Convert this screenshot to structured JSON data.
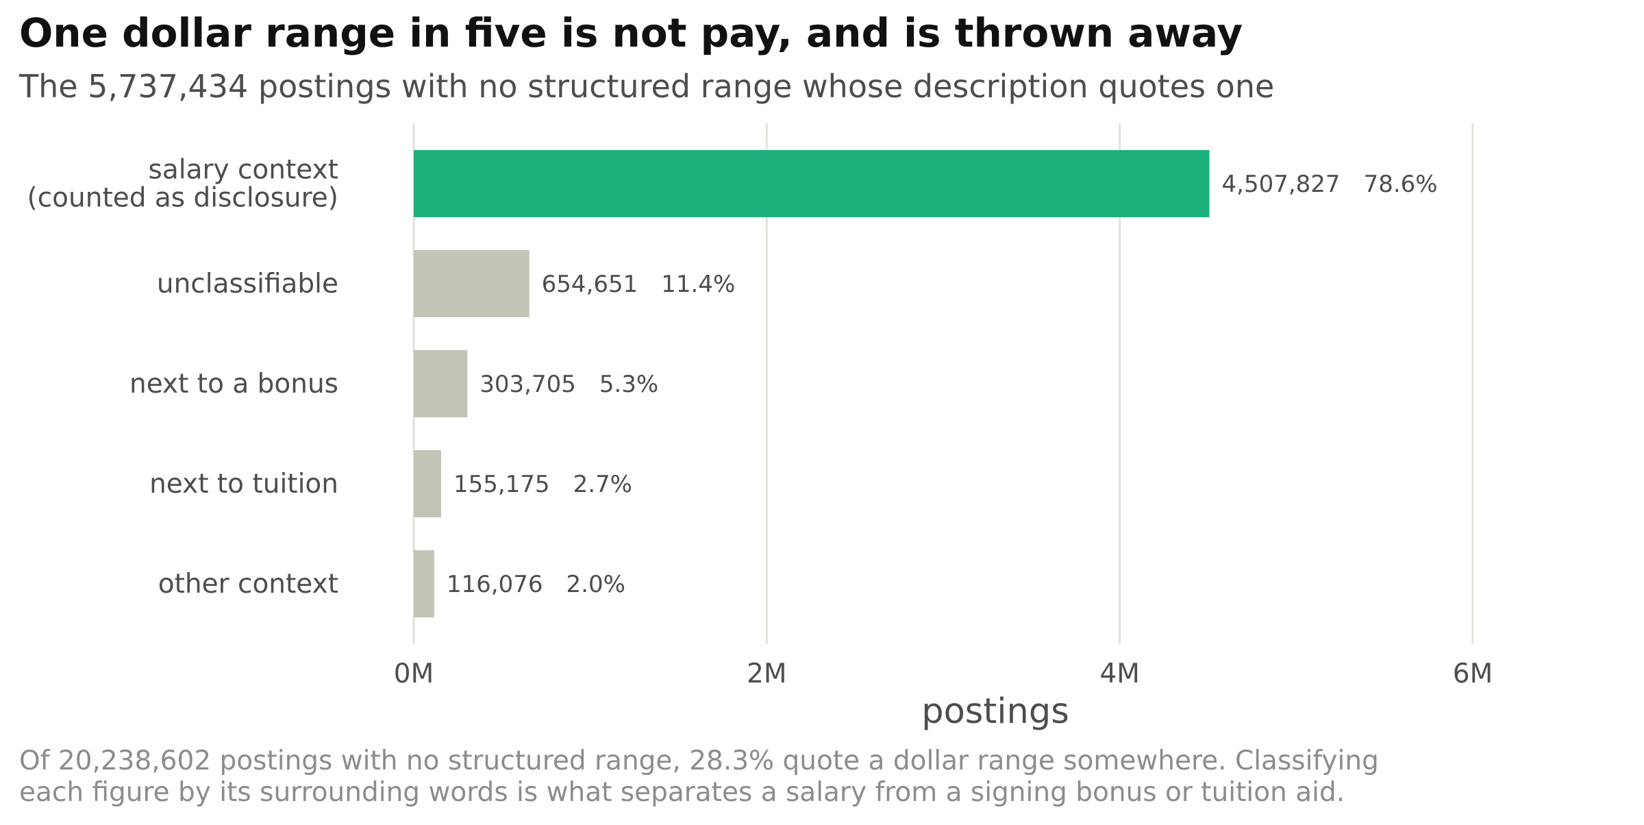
{
  "chart_data": {
    "type": "bar",
    "orientation": "horizontal",
    "title": "One dollar range in five is not pay, and is thrown away",
    "subtitle": "The 5,737,434 postings with no structured range whose description quotes one",
    "xlabel": "postings",
    "ylabel": "",
    "xlim": [
      0,
      6000000
    ],
    "x_ticks": [
      {
        "value": 0,
        "label": "0M"
      },
      {
        "value": 2000000,
        "label": "2M"
      },
      {
        "value": 4000000,
        "label": "4M"
      },
      {
        "value": 6000000,
        "label": "6M"
      }
    ],
    "grid": "vertical",
    "categories": [
      {
        "lines": [
          "salary context",
          "(counted as disclosure)"
        ],
        "value": 4507827,
        "value_label": "4,507,827",
        "pct_label": "78.6%",
        "color": "#1db07b"
      },
      {
        "lines": [
          "unclassifiable"
        ],
        "value": 654651,
        "value_label": "654,651",
        "pct_label": "11.4%",
        "color": "#c3c3b7"
      },
      {
        "lines": [
          "next to a bonus"
        ],
        "value": 303705,
        "value_label": "303,705",
        "pct_label": "5.3%",
        "color": "#c3c3b7"
      },
      {
        "lines": [
          "next to tuition"
        ],
        "value": 155175,
        "value_label": "155,175",
        "pct_label": "2.7%",
        "color": "#c3c3b7"
      },
      {
        "lines": [
          "other context"
        ],
        "value": 116076,
        "value_label": "116,076",
        "pct_label": "2.0%",
        "color": "#c3c3b7"
      }
    ],
    "caption_lines": [
      "Of 20,238,602 postings with no structured range, 28.3% quote a dollar range somewhere. Classifying",
      "each figure by its surrounding words is what separates a salary from a signing bonus or tuition aid."
    ],
    "colors": {
      "highlight": "#1db07b",
      "muted": "#c3c3b7",
      "grid": "#e3e2da"
    }
  }
}
